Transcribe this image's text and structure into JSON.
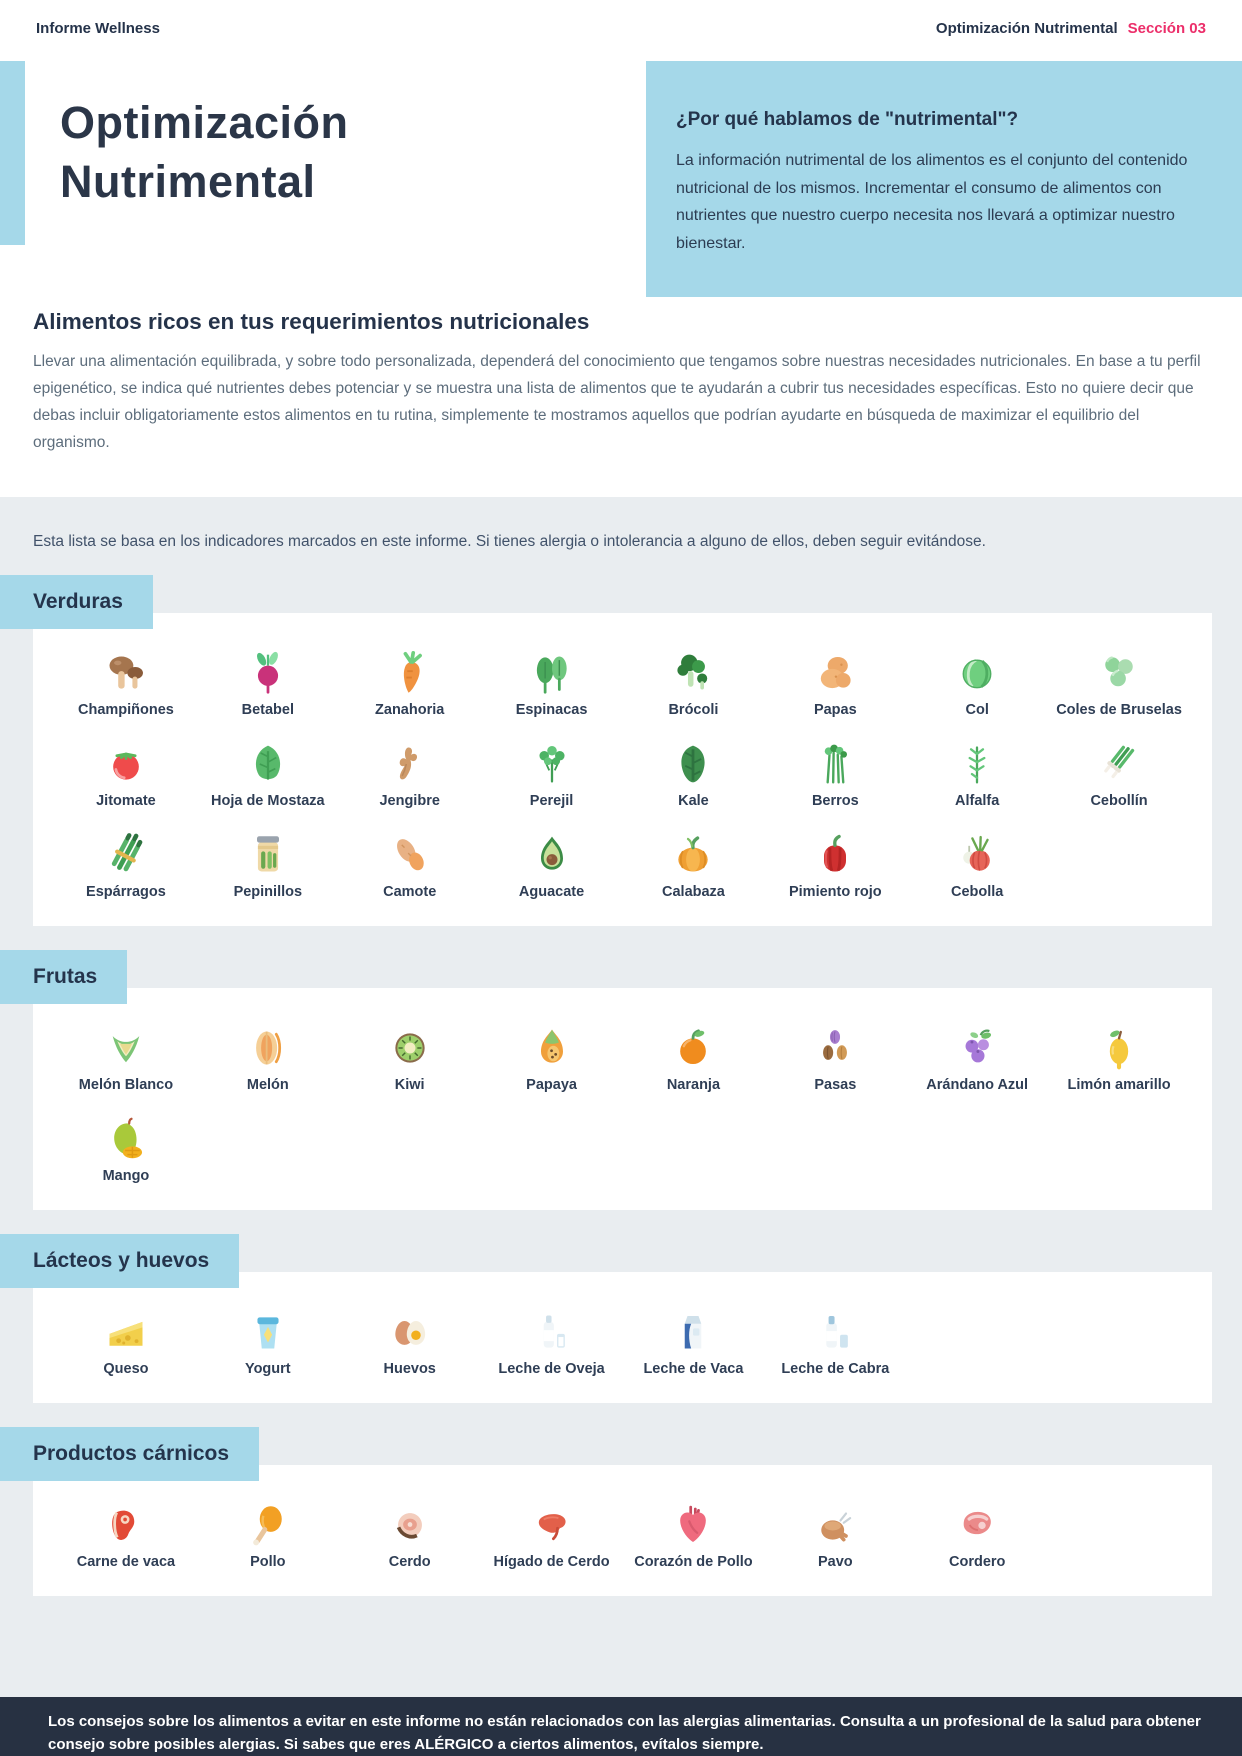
{
  "header": {
    "report_name": "Informe Wellness",
    "section_title": "Optimización Nutrimental",
    "section_badge": "Sección 03"
  },
  "hero": {
    "title_line1": "Optimización",
    "title_line2": "Nutrimental",
    "info_box": {
      "heading": "¿Por qué hablamos de \"nutrimental\"?",
      "body": "La información nutrimental de los alimentos es el conjunto del contenido nutricional de los mismos. Incrementar el consumo de alimentos con nutrientes que nuestro cuerpo necesita nos llevará a optimizar nuestro bienestar."
    }
  },
  "intro": {
    "heading": "Alimentos ricos en tus requerimientos nutricionales",
    "body": "Llevar una alimentación equilibrada, y sobre todo personalizada, dependerá del conocimiento que tengamos sobre nuestras necesidades nutricionales. En base a tu perfil epigenético, se indica qué nutrientes debes potenciar y se muestra una lista de alimentos que te ayudarán a cubrir tus necesidades específicas. Esto no quiere decir que debas incluir obligatoriamente estos alimentos en tu rutina, simplemente te mostramos aquellos que podrían ayudarte en búsqueda de maximizar el equilibrio del organismo."
  },
  "note": "Esta lista se basa en los indicadores marcados en este informe. Si tienes alergia o intolerancia a alguno de ellos, deben seguir evitándose.",
  "sections": [
    {
      "label": "Verduras",
      "items": [
        {
          "name": "Champiñones",
          "icon": "mushroom-icon"
        },
        {
          "name": "Betabel",
          "icon": "beet-icon"
        },
        {
          "name": "Zanahoria",
          "icon": "carrot-icon"
        },
        {
          "name": "Espinacas",
          "icon": "spinach-icon"
        },
        {
          "name": "Brócoli",
          "icon": "broccoli-icon"
        },
        {
          "name": "Papas",
          "icon": "potato-icon"
        },
        {
          "name": "Col",
          "icon": "cabbage-icon"
        },
        {
          "name": "Coles de Bruselas",
          "icon": "brussels-sprouts-icon"
        },
        {
          "name": "Jitomate",
          "icon": "tomato-icon"
        },
        {
          "name": "Hoja de Mostaza",
          "icon": "mustard-leaf-icon"
        },
        {
          "name": "Jengibre",
          "icon": "ginger-icon"
        },
        {
          "name": "Perejil",
          "icon": "parsley-icon"
        },
        {
          "name": "Kale",
          "icon": "kale-icon"
        },
        {
          "name": "Berros",
          "icon": "watercress-icon"
        },
        {
          "name": "Alfalfa",
          "icon": "alfalfa-icon"
        },
        {
          "name": "Cebollín",
          "icon": "chives-icon"
        },
        {
          "name": "Espárragos",
          "icon": "asparagus-icon"
        },
        {
          "name": "Pepinillos",
          "icon": "pickles-icon"
        },
        {
          "name": "Camote",
          "icon": "sweet-potato-icon"
        },
        {
          "name": "Aguacate",
          "icon": "avocado-icon"
        },
        {
          "name": "Calabaza",
          "icon": "pumpkin-icon"
        },
        {
          "name": "Pimiento rojo",
          "icon": "red-pepper-icon"
        },
        {
          "name": "Cebolla",
          "icon": "onion-icon"
        }
      ]
    },
    {
      "label": "Frutas",
      "items": [
        {
          "name": "Melón Blanco",
          "icon": "honeydew-icon"
        },
        {
          "name": "Melón",
          "icon": "cantaloupe-icon"
        },
        {
          "name": "Kiwi",
          "icon": "kiwi-icon"
        },
        {
          "name": "Papaya",
          "icon": "papaya-icon"
        },
        {
          "name": "Naranja",
          "icon": "orange-icon"
        },
        {
          "name": "Pasas",
          "icon": "raisins-icon"
        },
        {
          "name": "Arándano Azul",
          "icon": "blueberry-icon"
        },
        {
          "name": "Limón amarillo",
          "icon": "lemon-icon"
        },
        {
          "name": "Mango",
          "icon": "mango-icon"
        }
      ]
    },
    {
      "label": "Lácteos y huevos",
      "items": [
        {
          "name": "Queso",
          "icon": "cheese-icon"
        },
        {
          "name": "Yogurt",
          "icon": "yogurt-icon"
        },
        {
          "name": "Huevos",
          "icon": "eggs-icon"
        },
        {
          "name": "Leche de Oveja",
          "icon": "sheep-milk-icon"
        },
        {
          "name": "Leche de Vaca",
          "icon": "cow-milk-icon"
        },
        {
          "name": "Leche de Cabra",
          "icon": "goat-milk-icon"
        }
      ]
    },
    {
      "label": "Productos cárnicos",
      "items": [
        {
          "name": "Carne de vaca",
          "icon": "beef-icon"
        },
        {
          "name": "Pollo",
          "icon": "chicken-icon"
        },
        {
          "name": "Cerdo",
          "icon": "pork-icon"
        },
        {
          "name": "Hígado de Cerdo",
          "icon": "pork-liver-icon"
        },
        {
          "name": "Corazón de Pollo",
          "icon": "chicken-heart-icon"
        },
        {
          "name": "Pavo",
          "icon": "turkey-icon"
        },
        {
          "name": "Cordero",
          "icon": "lamb-icon"
        }
      ]
    }
  ],
  "footer": {
    "text": "Los consejos sobre los alimentos a evitar en este informe no están relacionados con las alergias alimentarias. Consulta a un profesional de la salud para obtener consejo sobre posibles alergias. Si sabes que eres ALÉRGICO a ciertos alimentos, evítalos siempre."
  },
  "colors": {
    "accent_blue": "#a5d8e9",
    "navy": "#25334a",
    "pink": "#ec2e6a",
    "band_gray": "#e9edf0",
    "footer_navy": "#273142"
  }
}
